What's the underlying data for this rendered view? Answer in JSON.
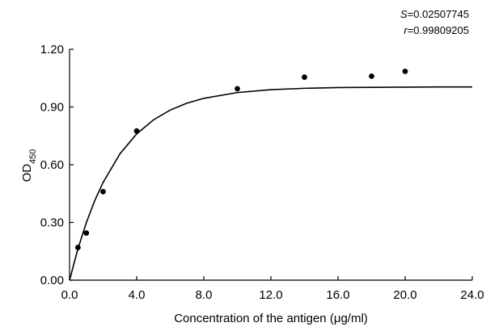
{
  "chart_data": {
    "type": "scatter",
    "title": "",
    "xlabel": "Concentration of the antigen (μg/ml)",
    "ylabel": {
      "base": "OD",
      "subscript": "450"
    },
    "xlim": [
      0,
      24
    ],
    "ylim": [
      0,
      1.2
    ],
    "x_ticks": [
      "0.0",
      "4.0",
      "8.0",
      "12.0",
      "16.0",
      "20.0",
      "24.0"
    ],
    "y_ticks": [
      "0.00",
      "0.30",
      "0.60",
      "0.90",
      "1.20"
    ],
    "grid": false,
    "series": [
      {
        "kind": "points",
        "x": [
          0.5,
          1,
          2,
          4,
          10,
          14,
          18,
          20
        ],
        "y": [
          0.17,
          0.245,
          0.46,
          0.775,
          0.995,
          1.055,
          1.06,
          1.085
        ]
      },
      {
        "kind": "fitted-curve",
        "x": [
          0,
          0.5,
          1,
          1.5,
          2,
          3,
          4,
          5,
          6,
          7,
          8,
          10,
          12,
          14,
          16,
          18,
          20,
          22,
          24
        ],
        "y": [
          0,
          0.163,
          0.299,
          0.413,
          0.508,
          0.656,
          0.76,
          0.833,
          0.884,
          0.92,
          0.945,
          0.975,
          0.99,
          0.997,
          1.001,
          1.002,
          1.003,
          1.004,
          1.004
        ]
      }
    ],
    "annotations": {
      "s": {
        "name": "S",
        "value": "=0.02507745"
      },
      "r": {
        "name": "r",
        "value": "=0.99809205"
      }
    }
  }
}
